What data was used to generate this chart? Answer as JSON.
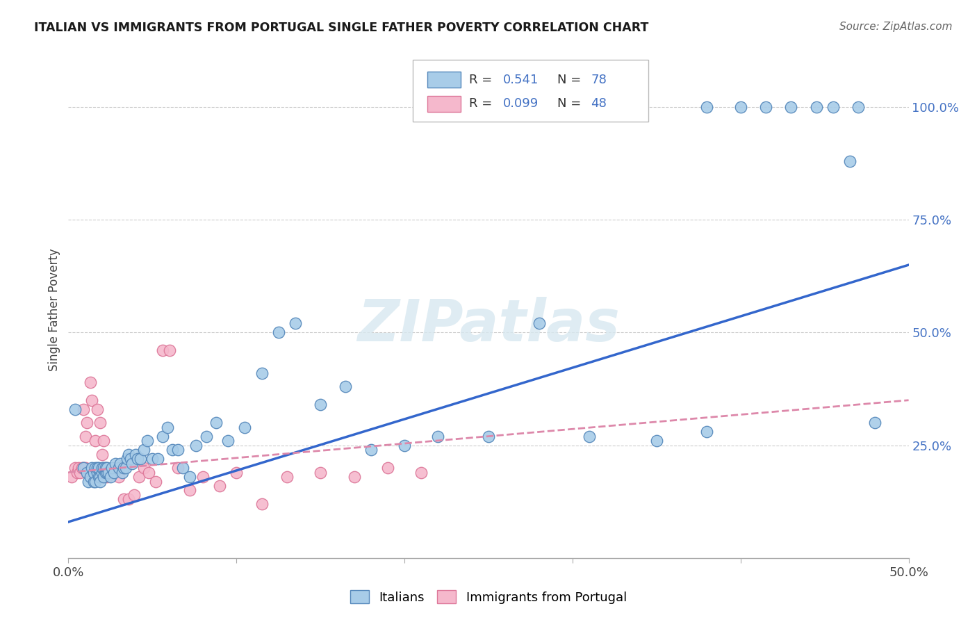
{
  "title": "ITALIAN VS IMMIGRANTS FROM PORTUGAL SINGLE FATHER POVERTY CORRELATION CHART",
  "source": "Source: ZipAtlas.com",
  "ylabel": "Single Father Poverty",
  "xlim": [
    0.0,
    0.5
  ],
  "ylim": [
    0.0,
    1.1
  ],
  "blue_color": "#a8cce8",
  "blue_edge_color": "#5588bb",
  "pink_color": "#f5b8cc",
  "pink_edge_color": "#dd7799",
  "blue_line_color": "#3366cc",
  "pink_line_color": "#dd88aa",
  "blue_R": 0.541,
  "blue_N": 78,
  "pink_R": 0.099,
  "pink_N": 48,
  "right_tick_color": "#4472c4",
  "watermark_color": "#d8e8f0",
  "blue_scatter_x": [
    0.004,
    0.009,
    0.011,
    0.012,
    0.013,
    0.014,
    0.015,
    0.015,
    0.016,
    0.016,
    0.017,
    0.017,
    0.018,
    0.018,
    0.019,
    0.019,
    0.02,
    0.02,
    0.021,
    0.021,
    0.022,
    0.022,
    0.023,
    0.023,
    0.024,
    0.025,
    0.026,
    0.027,
    0.028,
    0.03,
    0.031,
    0.032,
    0.033,
    0.034,
    0.035,
    0.036,
    0.037,
    0.038,
    0.04,
    0.041,
    0.043,
    0.045,
    0.047,
    0.05,
    0.053,
    0.056,
    0.059,
    0.062,
    0.065,
    0.068,
    0.072,
    0.076,
    0.082,
    0.088,
    0.095,
    0.105,
    0.115,
    0.125,
    0.135,
    0.15,
    0.165,
    0.18,
    0.2,
    0.22,
    0.25,
    0.28,
    0.31,
    0.35,
    0.38,
    0.38,
    0.4,
    0.415,
    0.43,
    0.445,
    0.455,
    0.465,
    0.47,
    0.48
  ],
  "blue_scatter_y": [
    0.33,
    0.2,
    0.19,
    0.17,
    0.18,
    0.2,
    0.17,
    0.19,
    0.17,
    0.2,
    0.19,
    0.2,
    0.18,
    0.2,
    0.18,
    0.17,
    0.19,
    0.2,
    0.18,
    0.2,
    0.19,
    0.2,
    0.19,
    0.2,
    0.19,
    0.18,
    0.2,
    0.19,
    0.21,
    0.2,
    0.21,
    0.19,
    0.2,
    0.2,
    0.22,
    0.23,
    0.22,
    0.21,
    0.23,
    0.22,
    0.22,
    0.24,
    0.26,
    0.22,
    0.22,
    0.27,
    0.29,
    0.24,
    0.24,
    0.2,
    0.18,
    0.25,
    0.27,
    0.3,
    0.26,
    0.29,
    0.41,
    0.5,
    0.52,
    0.34,
    0.38,
    0.24,
    0.25,
    0.27,
    0.27,
    0.52,
    0.27,
    0.26,
    0.28,
    1.0,
    1.0,
    1.0,
    1.0,
    1.0,
    1.0,
    0.88,
    1.0,
    0.3
  ],
  "pink_scatter_x": [
    0.002,
    0.004,
    0.005,
    0.006,
    0.007,
    0.008,
    0.009,
    0.009,
    0.01,
    0.01,
    0.011,
    0.012,
    0.013,
    0.014,
    0.015,
    0.015,
    0.016,
    0.017,
    0.018,
    0.019,
    0.02,
    0.02,
    0.021,
    0.022,
    0.023,
    0.025,
    0.027,
    0.03,
    0.033,
    0.036,
    0.039,
    0.042,
    0.045,
    0.048,
    0.052,
    0.056,
    0.06,
    0.065,
    0.072,
    0.08,
    0.09,
    0.1,
    0.115,
    0.13,
    0.15,
    0.17,
    0.19,
    0.21
  ],
  "pink_scatter_y": [
    0.18,
    0.2,
    0.19,
    0.2,
    0.19,
    0.2,
    0.2,
    0.33,
    0.27,
    0.2,
    0.3,
    0.19,
    0.39,
    0.35,
    0.18,
    0.19,
    0.26,
    0.33,
    0.18,
    0.3,
    0.18,
    0.23,
    0.26,
    0.2,
    0.18,
    0.19,
    0.2,
    0.18,
    0.13,
    0.13,
    0.14,
    0.18,
    0.2,
    0.19,
    0.17,
    0.46,
    0.46,
    0.2,
    0.15,
    0.18,
    0.16,
    0.19,
    0.12,
    0.18,
    0.19,
    0.18,
    0.2,
    0.19
  ]
}
